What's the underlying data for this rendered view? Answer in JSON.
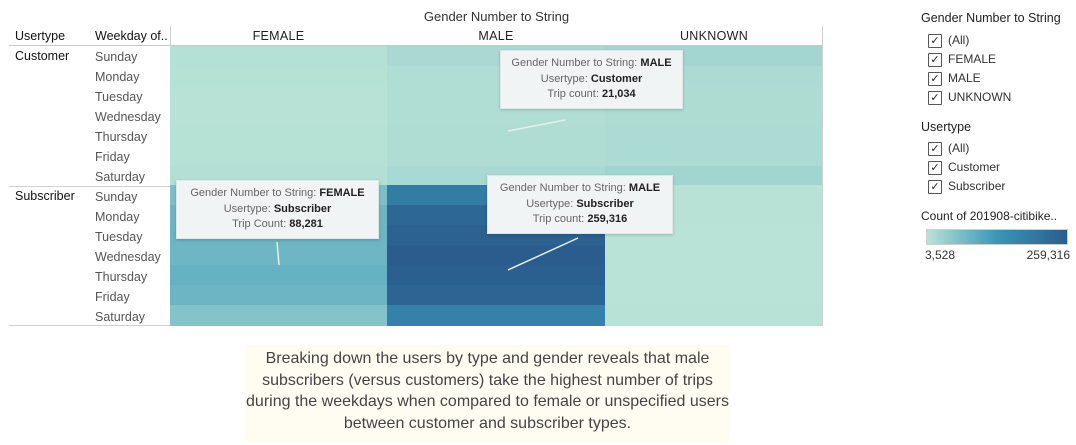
{
  "header": {
    "top_title": "Gender Number to String",
    "usertype_col": "Usertype",
    "weekday_col": "Weekday of..",
    "genders": [
      "FEMALE",
      "MALE",
      "UNKNOWN"
    ]
  },
  "usertypes": [
    "Customer",
    "Subscriber"
  ],
  "weekdays": [
    "Sunday",
    "Monday",
    "Tuesday",
    "Wednesday",
    "Thursday",
    "Friday",
    "Saturday"
  ],
  "tooltips": [
    {
      "l1_label": "Gender Number to String:",
      "l1_val": "MALE",
      "l2_label": "Usertype:",
      "l2_val": "Customer",
      "l3_label": "Trip count:",
      "l3_val": "21,034"
    },
    {
      "l1_label": "Gender Number to String:",
      "l1_val": "FEMALE",
      "l2_label": "Usertype:",
      "l2_val": "Subscriber",
      "l3_label": "Trip Count:",
      "l3_val": "88,281"
    },
    {
      "l1_label": "Gender Number to String:",
      "l1_val": "MALE",
      "l2_label": "Usertype:",
      "l2_val": "Subscriber",
      "l3_label": "Trip count:",
      "l3_val": "259,316"
    }
  ],
  "filters": {
    "gender": {
      "title": "Gender Number to String",
      "items": [
        {
          "label": "(All)"
        },
        {
          "label": "FEMALE"
        },
        {
          "label": "MALE"
        },
        {
          "label": "UNKNOWN"
        }
      ]
    },
    "usertype": {
      "title": "Usertype",
      "items": [
        {
          "label": "(All)"
        },
        {
          "label": "Customer"
        },
        {
          "label": "Subscriber"
        }
      ]
    },
    "checkmark": "✓"
  },
  "color_legend": {
    "title": "Count of 201908-citibike..",
    "min_label": "3,528",
    "max_label": "259,316",
    "min_color": "#b9e3d6",
    "max_color": "#2a5d8e"
  },
  "caption": "Breaking down the users by type and gender reveals that male subscribers (versus customers) take the highest number of trips during the weekdays when compared to female or unspecified users between customer and subscriber types.",
  "chart_data": {
    "type": "heatmap",
    "title": "Gender Number to String",
    "x_categories": [
      "FEMALE",
      "MALE",
      "UNKNOWN"
    ],
    "y_groups": [
      "Customer",
      "Subscriber"
    ],
    "y_categories": [
      "Sunday",
      "Monday",
      "Tuesday",
      "Wednesday",
      "Thursday",
      "Friday",
      "Saturday"
    ],
    "color_scale": {
      "min": 3528,
      "max": 259316
    },
    "values": {
      "Customer": {
        "FEMALE": [
          9000,
          6500,
          6000,
          6000,
          6500,
          6500,
          10000
        ],
        "MALE": [
          21034,
          14000,
          13000,
          13500,
          14500,
          14500,
          22000
        ],
        "UNKNOWN": [
          28000,
          18000,
          16000,
          16500,
          18000,
          18000,
          30000
        ]
      },
      "Subscriber": {
        "FEMALE": [
          70000,
          85000,
          88281,
          86000,
          95000,
          88000,
          62000
        ],
        "MALE": [
          195000,
          240000,
          250000,
          259316,
          255000,
          245000,
          185000
        ],
        "UNKNOWN": [
          5000,
          4500,
          4000,
          3800,
          3700,
          3600,
          4500
        ]
      }
    }
  }
}
